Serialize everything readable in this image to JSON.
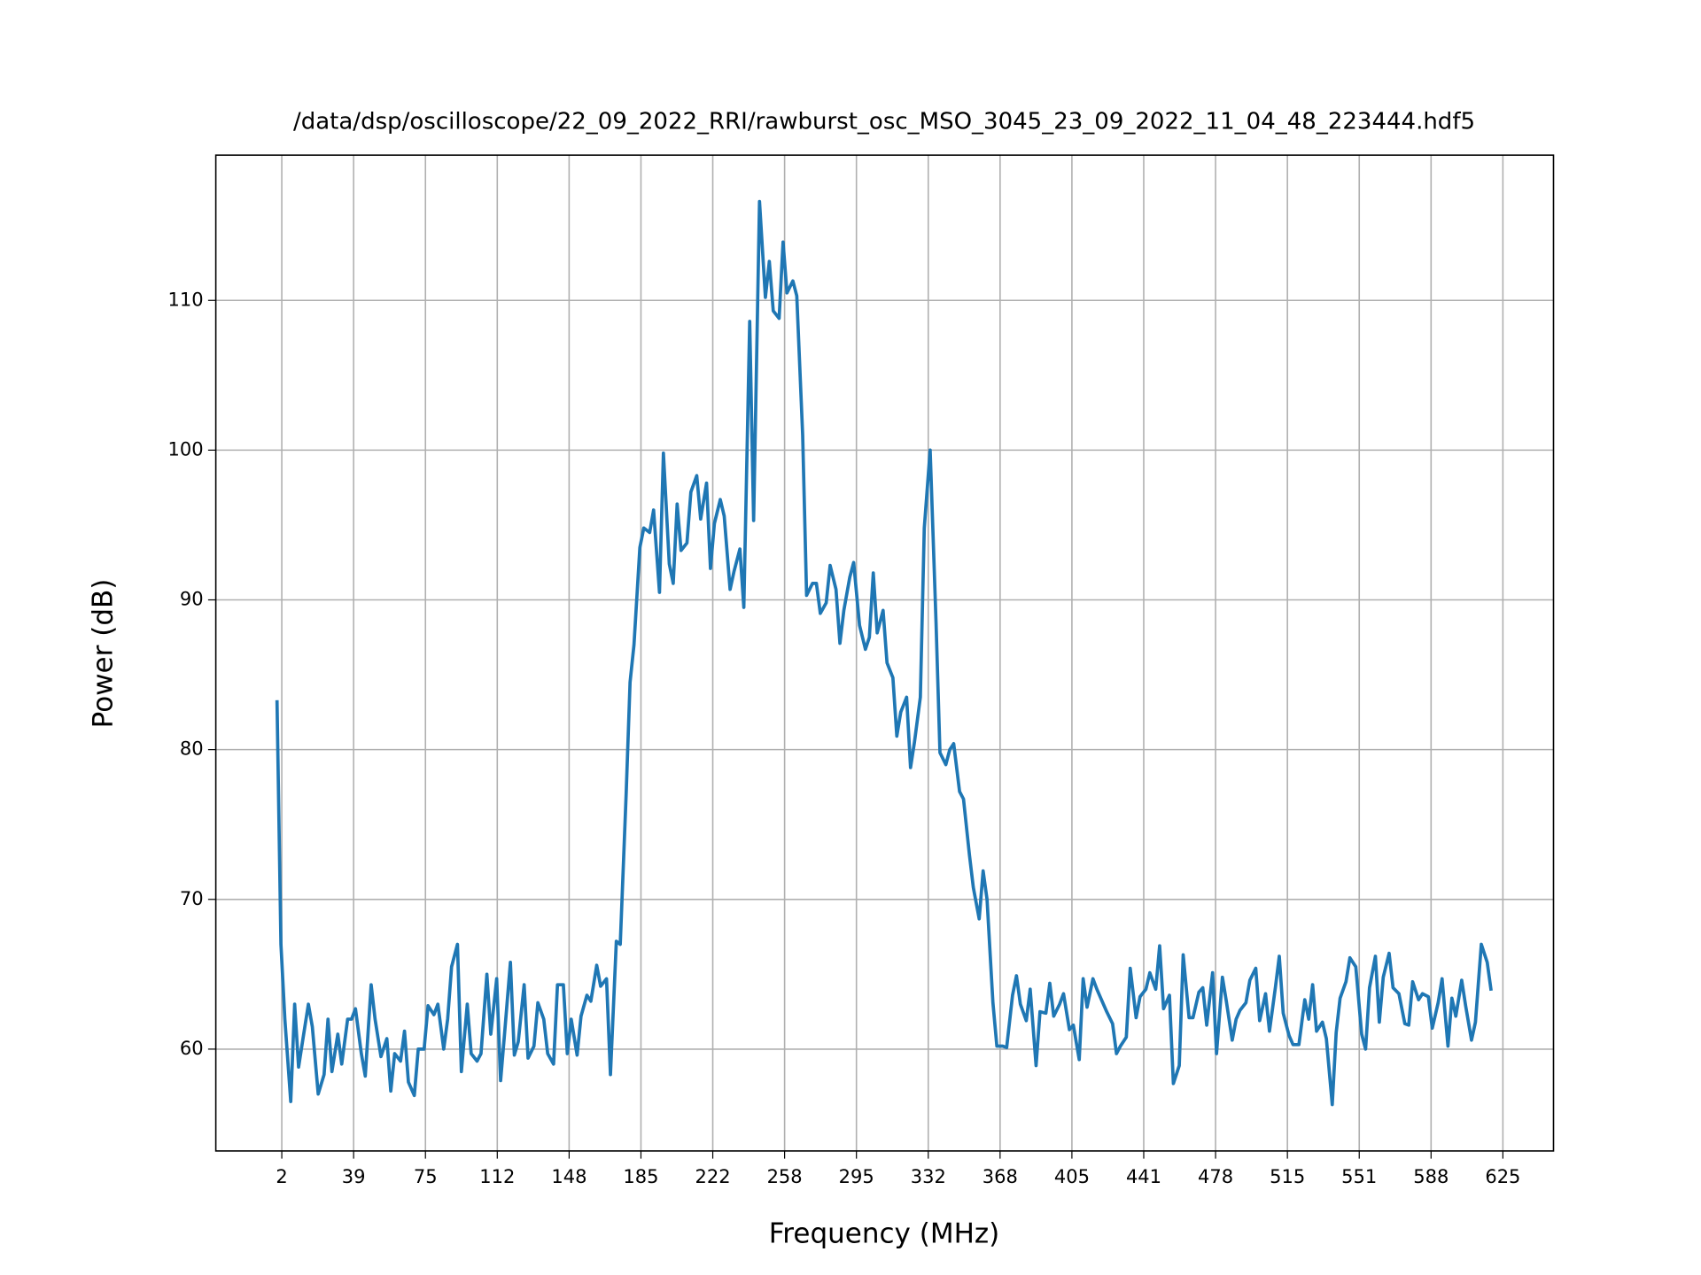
{
  "chart_data": {
    "type": "line",
    "title": "/data/dsp/oscilloscope/22_09_2022_RRI/rawburst_osc_MSO_3045_23_09_2022_11_04_48_223444.hdf5",
    "x_label": "Frequency (MHz)",
    "y_label": "Power (dB)",
    "x": [
      0,
      2,
      4,
      7,
      9,
      11,
      13,
      16,
      18,
      21,
      24,
      26,
      28,
      31,
      33,
      36,
      38,
      40,
      43,
      45,
      48,
      50,
      53,
      56,
      58,
      60,
      63,
      65,
      67,
      70,
      72,
      75,
      77,
      80,
      82,
      85,
      87,
      89,
      92,
      94,
      97,
      99,
      102,
      104,
      107,
      109,
      112,
      114,
      116,
      119,
      121,
      123,
      126,
      128,
      131,
      133,
      136,
      138,
      141,
      143,
      146,
      148,
      150,
      153,
      155,
      158,
      160,
      163,
      165,
      168,
      170,
      173,
      175,
      178,
      180,
      182,
      185,
      187,
      190,
      192,
      195,
      197,
      200,
      202,
      204,
      206,
      209,
      211,
      214,
      216,
      219,
      221,
      223,
      226,
      228,
      231,
      233,
      236,
      238,
      241,
      243,
      246,
      249,
      251,
      253,
      256,
      258,
      260,
      263,
      265,
      268,
      270,
      273,
      275,
      277,
      280,
      282,
      285,
      287,
      289,
      292,
      294,
      297,
      300,
      302,
      304,
      306,
      309,
      311,
      314,
      316,
      318,
      321,
      323,
      325,
      328,
      330,
      333,
      336,
      338,
      341,
      343,
      345,
      348,
      350,
      353,
      355,
      358,
      360,
      362,
      365,
      367,
      370,
      372,
      375,
      377,
      379,
      382,
      384,
      387,
      389,
      392,
      394,
      396,
      399,
      401,
      404,
      406,
      409,
      411,
      413,
      416,
      418,
      421,
      423,
      426,
      428,
      430,
      433,
      435,
      438,
      440,
      443,
      445,
      448,
      450,
      452,
      455,
      457,
      460,
      462,
      465,
      467,
      470,
      472,
      474,
      477,
      479,
      482,
      484,
      487,
      489,
      491,
      494,
      496,
      499,
      501,
      504,
      506,
      509,
      511,
      513,
      516,
      518,
      521,
      524,
      526,
      528,
      530,
      533,
      535,
      538,
      540,
      542,
      545,
      547,
      550,
      553,
      555,
      557,
      560,
      562,
      564,
      567,
      569,
      572,
      575,
      577,
      579,
      582,
      584,
      587,
      589,
      592,
      594,
      597,
      599,
      601,
      604,
      606,
      609,
      611,
      614,
      617,
      619
    ],
    "series": [
      {
        "name": "Power",
        "color": "#1f77b4",
        "values": [
          83.3,
          67,
          62,
          56.5,
          63,
          58.8,
          60.5,
          63,
          61.5,
          57,
          58.3,
          62,
          58.5,
          61,
          59,
          62,
          62,
          62.7,
          59.7,
          58.2,
          64.3,
          62,
          59.5,
          60.7,
          57.2,
          59.7,
          59.2,
          61.2,
          57.8,
          56.9,
          60,
          60,
          62.9,
          62.3,
          63,
          60,
          62,
          65.5,
          67,
          58.5,
          63,
          59.7,
          59.2,
          59.7,
          65,
          61,
          64.7,
          57.9,
          61,
          65.8,
          59.6,
          60.5,
          64.3,
          59.4,
          60.2,
          63.1,
          62,
          59.7,
          59,
          64.3,
          64.3,
          59.7,
          62,
          59.6,
          62.2,
          63.6,
          63.2,
          65.6,
          64.2,
          64.7,
          58.3,
          67.2,
          67,
          77,
          84.5,
          87,
          93.5,
          94.8,
          94.5,
          96,
          90.5,
          99.8,
          92.4,
          91.1,
          96.4,
          93.3,
          93.8,
          97.2,
          98.3,
          95.4,
          97.8,
          92.1,
          95.1,
          96.7,
          95.6,
          90.7,
          91.9,
          93.4,
          89.5,
          108.6,
          95.3,
          116.6,
          110.2,
          112.6,
          109.3,
          108.8,
          113.9,
          110.5,
          111.3,
          110.3,
          101,
          90.3,
          91.1,
          91.1,
          89.1,
          89.8,
          92.3,
          90.7,
          87.1,
          89.3,
          91.5,
          92.5,
          88.3,
          86.7,
          87.5,
          91.8,
          87.8,
          89.3,
          85.8,
          84.8,
          80.9,
          82.5,
          83.5,
          78.8,
          80.5,
          83.5,
          94.8,
          100,
          88.5,
          79.8,
          79,
          80,
          80.4,
          77.2,
          76.7,
          73,
          70.8,
          68.7,
          71.9,
          70,
          63.1,
          60.2,
          60.2,
          60.1,
          63.6,
          64.9,
          63,
          61.9,
          64,
          58.9,
          62.5,
          62.4,
          64.4,
          62.2,
          63,
          63.7,
          61.3,
          61.6,
          59.3,
          64.7,
          62.8,
          64.7,
          64,
          63.1,
          62.5,
          61.7,
          59.7,
          60.2,
          60.8,
          65.4,
          62.1,
          63.5,
          64,
          65.1,
          64,
          66.9,
          62.7,
          63.6,
          57.7,
          58.9,
          66.3,
          62.1,
          62.1,
          63.8,
          64.1,
          61.6,
          65.1,
          59.7,
          64.8,
          63.2,
          60.6,
          62,
          62.6,
          63.1,
          64.6,
          65.4,
          61.9,
          63.7,
          61.2,
          64.1,
          66.2,
          62.4,
          60.9,
          60.3,
          60.3,
          63.3,
          62,
          64.3,
          61.2,
          61.8,
          60.7,
          56.3,
          61.1,
          63.4,
          64.5,
          66.1,
          65.5,
          61,
          60,
          64.1,
          66.2,
          61.8,
          64.8,
          66.4,
          64.1,
          63.7,
          61.7,
          61.6,
          64.5,
          63.3,
          63.7,
          63.5,
          61.4,
          63.1,
          64.7,
          60.2,
          63.4,
          62.2,
          64.6,
          62.9,
          60.6,
          61.8,
          67,
          65.8,
          63.9
        ]
      }
    ],
    "xlim": [
      -31.2,
      650.8
    ],
    "ylim": [
      53.2,
      119.7
    ],
    "xticks": [
      {
        "value": 2.44,
        "label": "2"
      },
      {
        "value": 39.06,
        "label": "39"
      },
      {
        "value": 75.68,
        "label": "75"
      },
      {
        "value": 112.3,
        "label": "112"
      },
      {
        "value": 148.93,
        "label": "148"
      },
      {
        "value": 185.55,
        "label": "185"
      },
      {
        "value": 222.17,
        "label": "222"
      },
      {
        "value": 258.79,
        "label": "258"
      },
      {
        "value": 295.41,
        "label": "295"
      },
      {
        "value": 332.03,
        "label": "332"
      },
      {
        "value": 368.65,
        "label": "368"
      },
      {
        "value": 405.27,
        "label": "405"
      },
      {
        "value": 441.89,
        "label": "441"
      },
      {
        "value": 478.52,
        "label": "478"
      },
      {
        "value": 515.14,
        "label": "515"
      },
      {
        "value": 551.76,
        "label": "551"
      },
      {
        "value": 588.38,
        "label": "588"
      },
      {
        "value": 625,
        "label": "625"
      }
    ],
    "yticks": [
      60,
      70,
      80,
      90,
      100,
      110
    ],
    "grid": true
  }
}
